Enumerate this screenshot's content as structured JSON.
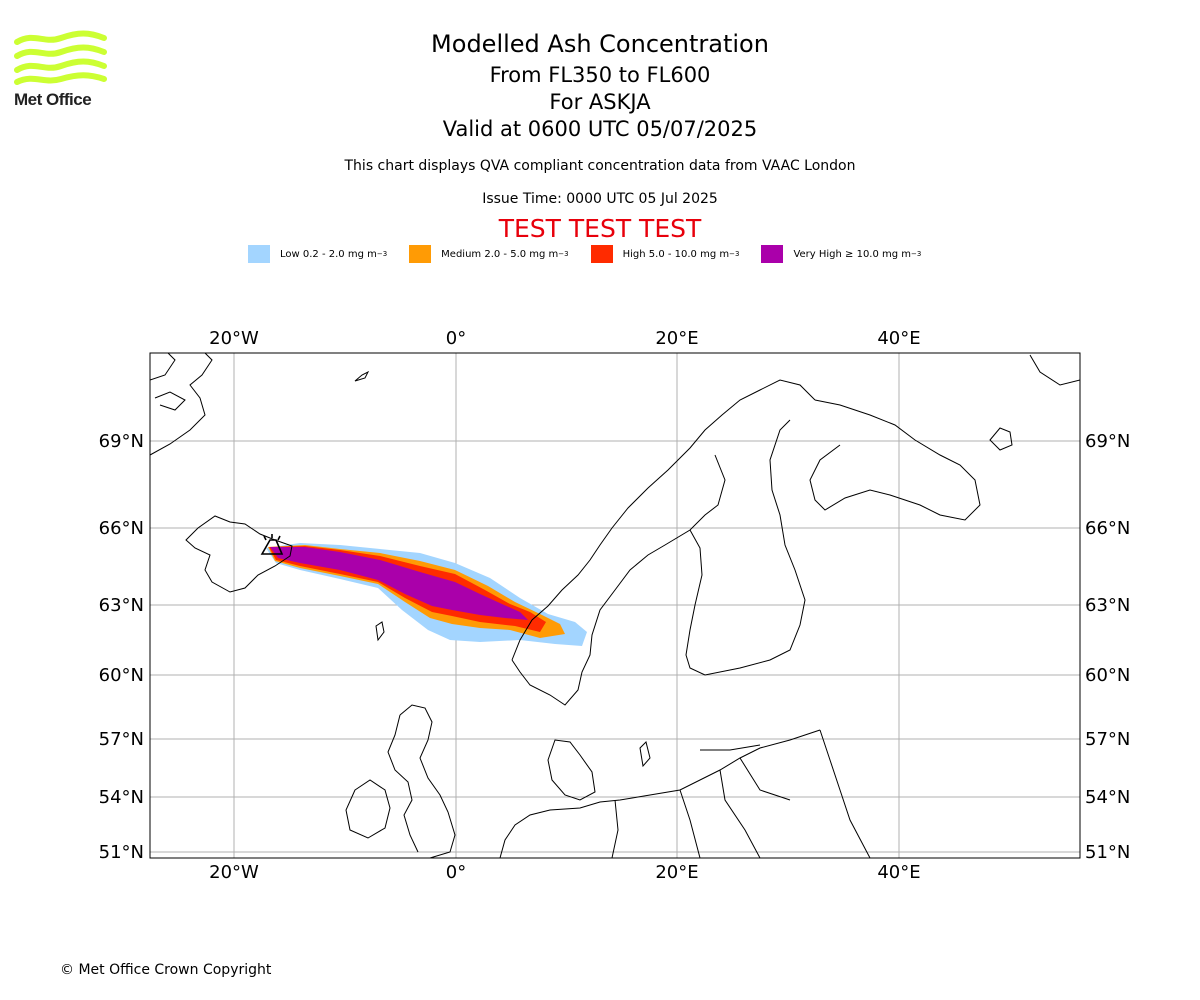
{
  "branding": {
    "logo_text": "Met Office",
    "logo_color": "#ccff33"
  },
  "header": {
    "title": "Modelled Ash Concentration",
    "flight_levels": "From FL350 to FL600",
    "volcano": "For ASKJA",
    "valid_time": "Valid at 0600 UTC 05/07/2025",
    "description": "This chart displays QVA compliant concentration data from VAAC London",
    "issue_time": "Issue Time: 0000 UTC 05 Jul 2025",
    "test_banner": "TEST TEST TEST",
    "test_color": "#e8000b"
  },
  "legend": [
    {
      "label": "Low 0.2 - 2.0 mg m",
      "unit_sup": "−3",
      "color": "#a3d5ff"
    },
    {
      "label": "Medium 2.0 - 5.0 mg m",
      "unit_sup": "−3",
      "color": "#ff9b05"
    },
    {
      "label": "High 5.0 - 10.0 mg m",
      "unit_sup": "−3",
      "color": "#ff2b00"
    },
    {
      "label": "Very High ≥ 10.0 mg m",
      "unit_sup": "−3",
      "color": "#aa00aa"
    }
  ],
  "map": {
    "lon_ticks": [
      "20°W",
      "0°",
      "20°E",
      "40°E"
    ],
    "lat_ticks": [
      "69°N",
      "66°N",
      "63°N",
      "60°N",
      "57°N",
      "54°N",
      "51°N"
    ],
    "gridline_color": "#b0b0b0"
  },
  "footer": {
    "copyright": "© Met Office Crown Copyright"
  }
}
